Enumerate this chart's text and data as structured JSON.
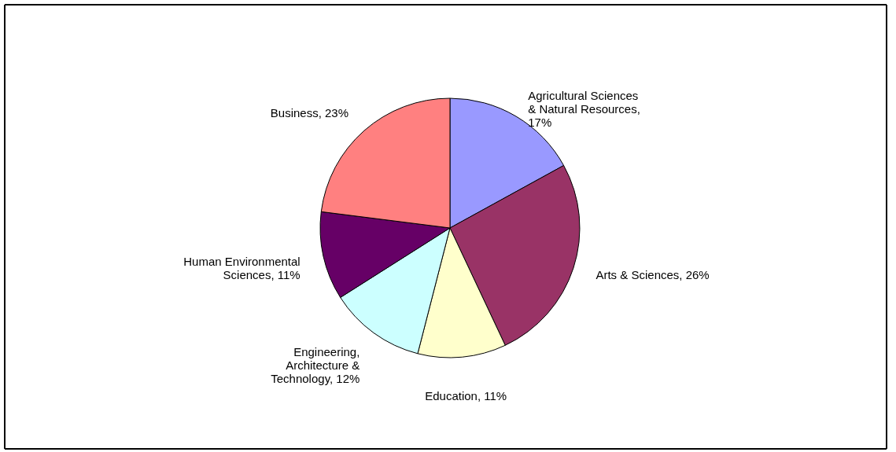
{
  "chart_data": {
    "type": "pie",
    "categories": [
      "Agricultural Sciences & Natural Resources",
      "Arts & Sciences",
      "Education",
      "Engineering, Architecture & Technology",
      "Human Environmental Sciences",
      "Business"
    ],
    "values": [
      17,
      26,
      11,
      12,
      11,
      23
    ],
    "value_labels": [
      ", 17%",
      ", 26%",
      ", 11%",
      ", 12%",
      ", 11%",
      ", 23%"
    ],
    "colors": [
      "#9999ff",
      "#993366",
      "#ffffcc",
      "#ccffff",
      "#660066",
      "#ff8080"
    ],
    "legend": false
  }
}
